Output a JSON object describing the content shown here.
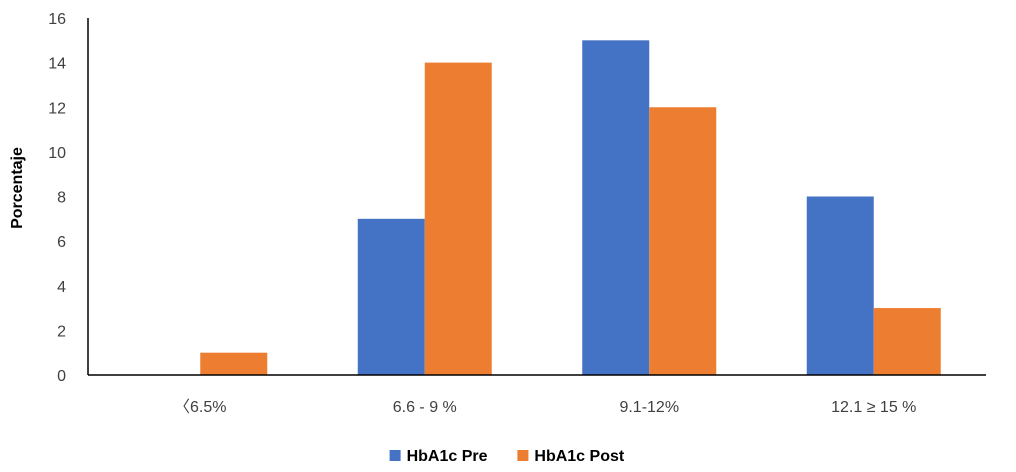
{
  "chart_data": {
    "type": "bar",
    "title": "",
    "xlabel": "",
    "ylabel": "Porcentaje",
    "ylim": [
      0,
      16
    ],
    "yticks": [
      0,
      2,
      4,
      6,
      8,
      10,
      12,
      14,
      16
    ],
    "categories": [
      "〈6.5%",
      "6.6 - 9 %",
      "9.1-12%",
      "12.1 ≥ 15 %"
    ],
    "series": [
      {
        "name": "HbA1c Pre",
        "color": "#4472C4",
        "values": [
          0,
          7,
          15,
          8
        ]
      },
      {
        "name": "HbA1c Post",
        "color": "#ED7D31",
        "values": [
          1,
          14,
          12,
          3
        ]
      }
    ],
    "grid": false,
    "legend_position": "bottom"
  }
}
